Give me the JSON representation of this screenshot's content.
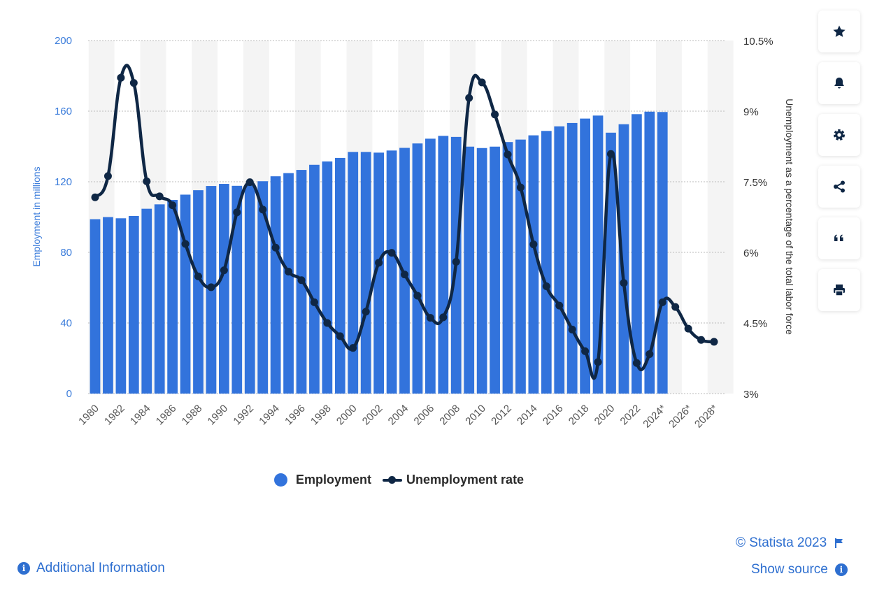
{
  "chart_data": {
    "type": "bar+line",
    "x": [
      "1980",
      "1981",
      "1982",
      "1983",
      "1984",
      "1985",
      "1986",
      "1987",
      "1988",
      "1989",
      "1990",
      "1991",
      "1992",
      "1993",
      "1994",
      "1995",
      "1996",
      "1997",
      "1998",
      "1999",
      "2000",
      "2001",
      "2002",
      "2003",
      "2004",
      "2005",
      "2006",
      "2007",
      "2008",
      "2009",
      "2010",
      "2011",
      "2012",
      "2013",
      "2014",
      "2015",
      "2016",
      "2017",
      "2018",
      "2019",
      "2020",
      "2021",
      "2022",
      "2023",
      "2024*",
      "2025*",
      "2026*",
      "2027*",
      "2028*"
    ],
    "x_tick_labels": [
      "1980",
      "1982",
      "1984",
      "1986",
      "1988",
      "1990",
      "1992",
      "1994",
      "1996",
      "1998",
      "2000",
      "2002",
      "2004",
      "2006",
      "2008",
      "2010",
      "2012",
      "2014",
      "2016",
      "2018",
      "2020",
      "2022",
      "2024*",
      "2026*",
      "2028*"
    ],
    "series": [
      {
        "name": "Employment",
        "type": "bar",
        "axis": "left",
        "color": "#3273dc",
        "values": [
          98.8,
          100.0,
          99.3,
          100.6,
          104.7,
          107.2,
          109.7,
          112.7,
          115.2,
          117.6,
          118.8,
          117.7,
          118.5,
          120.3,
          123.1,
          124.9,
          126.7,
          129.6,
          131.5,
          133.5,
          136.9,
          136.9,
          136.5,
          137.7,
          139.2,
          141.7,
          144.4,
          146.0,
          145.4,
          139.9,
          139.1,
          139.9,
          142.5,
          143.9,
          146.3,
          148.8,
          151.4,
          153.3,
          155.8,
          157.5,
          147.8,
          152.6,
          158.3,
          159.7,
          159.5,
          null,
          null,
          null,
          null
        ]
      },
      {
        "name": "Unemployment rate",
        "type": "line",
        "axis": "right",
        "color": "#0f2745",
        "values": [
          7.17,
          7.62,
          9.71,
          9.6,
          7.51,
          7.19,
          7.0,
          6.18,
          5.49,
          5.26,
          5.62,
          6.85,
          7.49,
          6.91,
          6.1,
          5.59,
          5.41,
          4.94,
          4.5,
          4.22,
          3.97,
          4.74,
          5.78,
          5.99,
          5.53,
          5.08,
          4.61,
          4.62,
          5.8,
          9.28,
          9.61,
          8.93,
          8.08,
          7.38,
          6.17,
          5.28,
          4.87,
          4.36,
          3.9,
          3.67,
          8.09,
          5.35,
          3.65,
          3.84,
          4.94,
          4.84,
          4.38,
          4.14,
          4.1
        ]
      }
    ],
    "y_left": {
      "label": "Employment in millions",
      "ticks": [
        "0",
        "40",
        "80",
        "120",
        "160",
        "200"
      ],
      "range": [
        0,
        200
      ]
    },
    "y_right": {
      "label": "Unemployment as a percentage of the total labor force",
      "ticks": [
        "3%",
        "4.5%",
        "6%",
        "7.5%",
        "9%",
        "10.5%"
      ],
      "range": [
        3,
        10.5
      ]
    },
    "grid": true,
    "legend_position": "bottom"
  },
  "legend": {
    "employment": "Employment",
    "unemployment": "Unemployment rate"
  },
  "toolbar": {
    "buttons": [
      {
        "icon": "star-icon"
      },
      {
        "icon": "bell-icon"
      },
      {
        "icon": "gear-icon"
      },
      {
        "icon": "share-icon"
      },
      {
        "icon": "quote-icon"
      },
      {
        "icon": "print-icon"
      }
    ]
  },
  "footer": {
    "copyright": "© Statista 2023",
    "show_source": "Show source",
    "additional_info": "Additional Information"
  },
  "colors": {
    "bar": "#3273dc",
    "line": "#0f2745",
    "link": "#2e6fd0",
    "band": "#f4f4f4"
  }
}
